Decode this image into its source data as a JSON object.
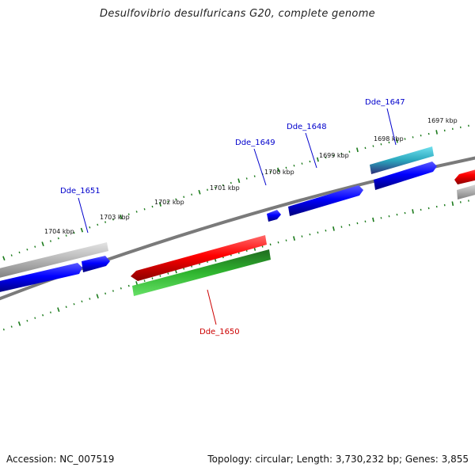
{
  "title": "Desulfovibrio desulfuricans G20, complete genome",
  "footer": {
    "accession": "Accession: NC_007519",
    "stats": "Topology: circular; Length: 3,730,232 bp; Genes: 3,855"
  },
  "ticks": [
    {
      "label": "1697 kbp"
    },
    {
      "label": "1698 kbp"
    },
    {
      "label": "1699 kbp"
    },
    {
      "label": "1700 kbp"
    },
    {
      "label": "1701 kbp"
    },
    {
      "label": "1702 kbp"
    },
    {
      "label": "1703 kbp"
    },
    {
      "label": "1704 kbp"
    }
  ],
  "genes": [
    {
      "label": "Dde_1647",
      "color": "#0000cc"
    },
    {
      "label": "Dde_1648",
      "color": "#0000cc"
    },
    {
      "label": "Dde_1649",
      "color": "#0000cc"
    },
    {
      "label": "Dde_1650",
      "color": "#cc0000"
    },
    {
      "label": "Dde_1651",
      "color": "#0000cc"
    }
  ],
  "colors": {
    "backbone": "#7f7f7f",
    "tick": "#1a7a1a",
    "cds_forward": "#0000ff",
    "cds_reverse": "#ff0000",
    "gene_feature": "#b0b0b0",
    "rna_feature": "#33cc33",
    "other_feature": "#33b5c9"
  }
}
